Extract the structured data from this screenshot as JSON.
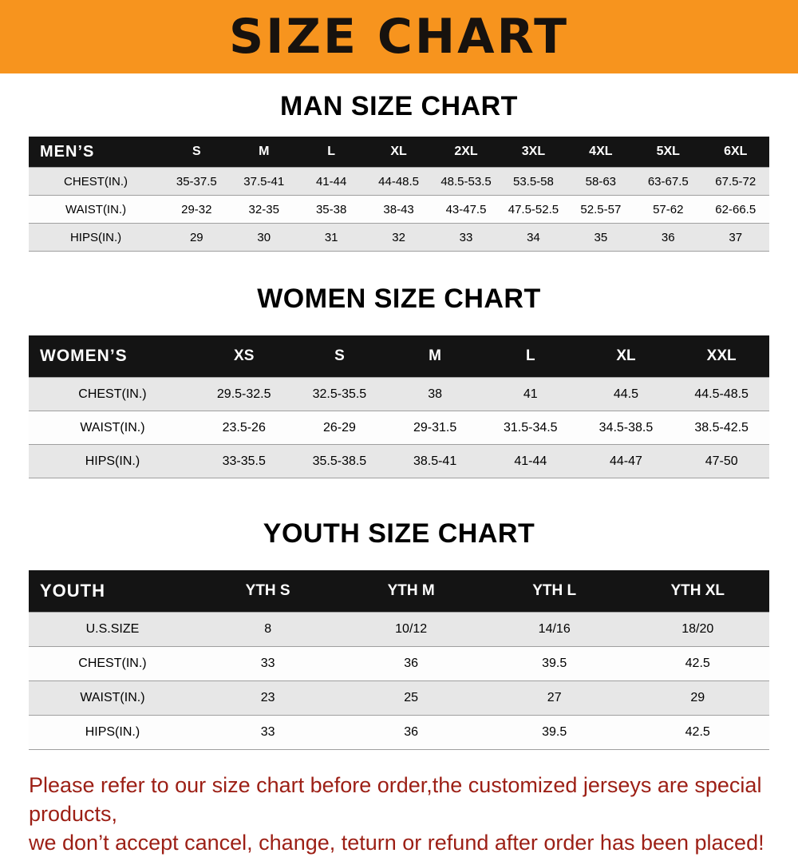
{
  "banner": {
    "title": "SIZE CHART"
  },
  "colors": {
    "banner_bg": "#f7941e",
    "table_header_bg": "#141414",
    "row_shade": "#e7e7e7",
    "note_red": "#9c1f15"
  },
  "men": {
    "heading": "MAN SIZE CHART",
    "corner": "MEN’S",
    "columns": [
      "S",
      "M",
      "L",
      "XL",
      "2XL",
      "3XL",
      "4XL",
      "5XL",
      "6XL"
    ],
    "rows": [
      {
        "label": "CHEST(IN.)",
        "values": [
          "35-37.5",
          "37.5-41",
          "41-44",
          "44-48.5",
          "48.5-53.5",
          "53.5-58",
          "58-63",
          "63-67.5",
          "67.5-72"
        ]
      },
      {
        "label": "WAIST(IN.)",
        "values": [
          "29-32",
          "32-35",
          "35-38",
          "38-43",
          "43-47.5",
          "47.5-52.5",
          "52.5-57",
          "57-62",
          "62-66.5"
        ]
      },
      {
        "label": "HIPS(IN.)",
        "values": [
          "29",
          "30",
          "31",
          "32",
          "33",
          "34",
          "35",
          "36",
          "37"
        ]
      }
    ]
  },
  "women": {
    "heading": "WOMEN SIZE CHART",
    "corner": "WOMEN’S",
    "columns": [
      "XS",
      "S",
      "M",
      "L",
      "XL",
      "XXL"
    ],
    "rows": [
      {
        "label": "CHEST(IN.)",
        "values": [
          "29.5-32.5",
          "32.5-35.5",
          "38",
          "41",
          "44.5",
          "44.5-48.5"
        ]
      },
      {
        "label": "WAIST(IN.)",
        "values": [
          "23.5-26",
          "26-29",
          "29-31.5",
          "31.5-34.5",
          "34.5-38.5",
          "38.5-42.5"
        ]
      },
      {
        "label": "HIPS(IN.)",
        "values": [
          "33-35.5",
          "35.5-38.5",
          "38.5-41",
          "41-44",
          "44-47",
          "47-50"
        ]
      }
    ]
  },
  "youth": {
    "heading": "YOUTH SIZE CHART",
    "corner": "YOUTH",
    "columns": [
      "YTH S",
      "YTH M",
      "YTH L",
      "YTH XL"
    ],
    "rows": [
      {
        "label": "U.S.SIZE",
        "values": [
          "8",
          "10/12",
          "14/16",
          "18/20"
        ]
      },
      {
        "label": "CHEST(IN.)",
        "values": [
          "33",
          "36",
          "39.5",
          "42.5"
        ]
      },
      {
        "label": "WAIST(IN.)",
        "values": [
          "23",
          "25",
          "27",
          "29"
        ]
      },
      {
        "label": "HIPS(IN.)",
        "values": [
          "33",
          "36",
          "39.5",
          "42.5"
        ]
      }
    ]
  },
  "footer": {
    "line1": "Please refer to our size chart before order,the customized jerseys are special products,",
    "line2": "we don’t accept cancel, change, teturn or refund after order has been placed!"
  }
}
